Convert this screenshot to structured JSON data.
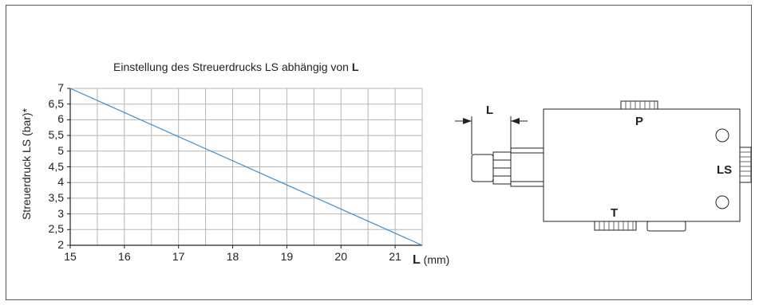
{
  "chart_data": {
    "type": "line",
    "title_text": "Einstellung des Streuerdrucks LS abhängig von",
    "title_symbol": "L",
    "xlabel_symbol": "L",
    "xlabel_unit": "(mm)",
    "ylabel": "Streuerdruck LS (bar)*",
    "xlim": [
      15,
      21.5
    ],
    "ylim": [
      2,
      7
    ],
    "x_ticks": [
      "15",
      "16",
      "17",
      "18",
      "19",
      "20",
      "21"
    ],
    "y_ticks": [
      "2",
      "2,5",
      "3",
      "3,5",
      "4",
      "4,5",
      "5",
      "5,5",
      "6",
      "6,5",
      "7"
    ],
    "grid": true,
    "series": [
      {
        "x": [
          15,
          21.5
        ],
        "y": [
          7,
          2
        ],
        "color": "#3a8fd1"
      }
    ]
  },
  "diagram": {
    "dimension_label": "L",
    "port_p": "P",
    "port_ls": "LS",
    "port_t": "T"
  }
}
